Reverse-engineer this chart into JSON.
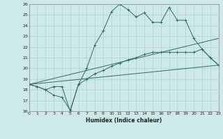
{
  "xlabel": "Humidex (Indice chaleur)",
  "bg_color": "#cce8e8",
  "line_color": "#2a6e65",
  "grid_color_major": "#aacccc",
  "grid_color_minor": "#c4e0e0",
  "x_min": 0,
  "x_max": 23,
  "y_min": 16,
  "y_max": 26,
  "line1_x": [
    0,
    1,
    2,
    3,
    4,
    5,
    6,
    7,
    8,
    9,
    10,
    11,
    12,
    13,
    14,
    15,
    16,
    17,
    18,
    19,
    20,
    21,
    22,
    23
  ],
  "line1_y": [
    18.5,
    18.3,
    18.0,
    18.3,
    18.3,
    16.0,
    18.5,
    20.0,
    22.2,
    23.5,
    25.3,
    26.0,
    25.5,
    24.8,
    25.2,
    24.3,
    24.3,
    25.7,
    24.5,
    24.5,
    22.8,
    21.8,
    21.0,
    20.3
  ],
  "line2_x": [
    0,
    1,
    2,
    3,
    4,
    5,
    6,
    7,
    8,
    9,
    10,
    11,
    12,
    13,
    14,
    15,
    16,
    17,
    18,
    19,
    20,
    21,
    22,
    23
  ],
  "line2_y": [
    18.5,
    18.3,
    18.0,
    17.5,
    17.3,
    16.1,
    18.5,
    19.0,
    19.5,
    19.8,
    20.2,
    20.5,
    20.8,
    21.0,
    21.3,
    21.5,
    21.5,
    21.5,
    21.5,
    21.5,
    21.5,
    21.8,
    21.0,
    20.3
  ],
  "line3_x": [
    0,
    23
  ],
  "line3_y": [
    18.5,
    22.8
  ],
  "line4_x": [
    0,
    23
  ],
  "line4_y": [
    18.5,
    20.3
  ]
}
